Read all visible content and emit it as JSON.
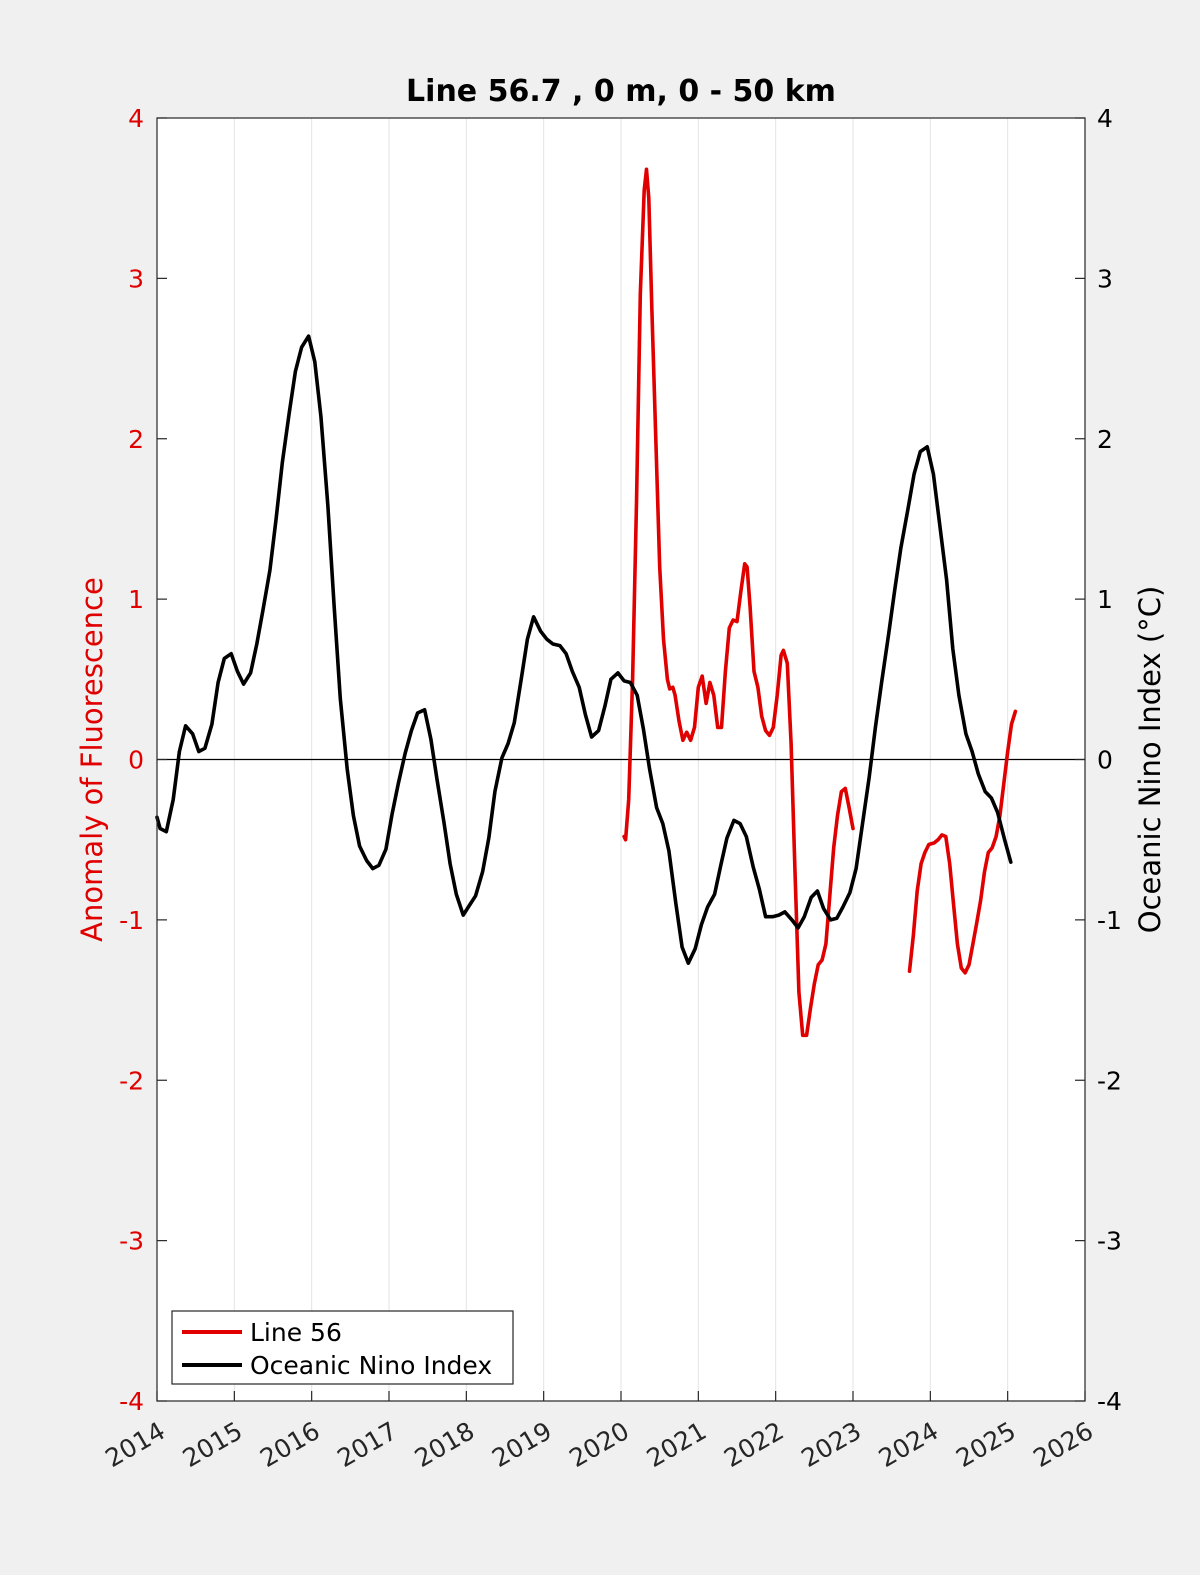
{
  "chart_data": {
    "type": "line",
    "title": "Line 56.7 , 0 m, 0 - 50 km",
    "ylabel_left": "Anomaly of Fluorescence",
    "ylabel_right": "Oceanic Nino Index (°C)",
    "xlim": [
      2014,
      2026
    ],
    "ylim_left": [
      -4,
      4
    ],
    "ylim_right": [
      -4,
      4
    ],
    "x_ticks": [
      "2014",
      "2015",
      "2016",
      "2017",
      "2018",
      "2019",
      "2020",
      "2021",
      "2022",
      "2023",
      "2024",
      "2025",
      "2026"
    ],
    "y_ticks_left": [
      "4",
      "3",
      "2",
      "1",
      "0",
      "-1",
      "-2",
      "-3",
      "-4"
    ],
    "y_ticks_right": [
      "4",
      "3",
      "2",
      "1",
      "0",
      "-1",
      "-2",
      "-3",
      "-4"
    ],
    "grid": "vertical",
    "zero_line": true,
    "legend": {
      "placement": "bottom-left",
      "entries": [
        {
          "label": "Line 56",
          "color": "#e00000"
        },
        {
          "label": "Oceanic Nino Index",
          "color": "#000000"
        }
      ]
    },
    "series": [
      {
        "name": "Line 56",
        "axis": "left",
        "color": "#e00000",
        "segments": [
          [
            [
              2020.04,
              -0.48
            ],
            [
              2020.06,
              -0.5
            ],
            [
              2020.1,
              -0.25
            ],
            [
              2020.15,
              0.5
            ],
            [
              2020.2,
              1.6
            ],
            [
              2020.25,
              2.9
            ],
            [
              2020.3,
              3.55
            ],
            [
              2020.33,
              3.68
            ],
            [
              2020.36,
              3.5
            ],
            [
              2020.4,
              2.8
            ],
            [
              2020.45,
              2.0
            ],
            [
              2020.5,
              1.2
            ],
            [
              2020.55,
              0.75
            ],
            [
              2020.6,
              0.5
            ],
            [
              2020.63,
              0.44
            ],
            [
              2020.67,
              0.45
            ],
            [
              2020.7,
              0.4
            ],
            [
              2020.75,
              0.24
            ],
            [
              2020.8,
              0.12
            ],
            [
              2020.85,
              0.17
            ],
            [
              2020.9,
              0.12
            ],
            [
              2020.95,
              0.2
            ],
            [
              2021.0,
              0.45
            ],
            [
              2021.05,
              0.52
            ],
            [
              2021.1,
              0.35
            ],
            [
              2021.15,
              0.48
            ],
            [
              2021.2,
              0.4
            ],
            [
              2021.25,
              0.2
            ],
            [
              2021.3,
              0.2
            ],
            [
              2021.35,
              0.55
            ],
            [
              2021.4,
              0.82
            ],
            [
              2021.45,
              0.87
            ],
            [
              2021.5,
              0.86
            ],
            [
              2021.55,
              1.05
            ],
            [
              2021.6,
              1.22
            ],
            [
              2021.63,
              1.2
            ],
            [
              2021.67,
              0.95
            ],
            [
              2021.72,
              0.55
            ],
            [
              2021.77,
              0.45
            ],
            [
              2021.82,
              0.27
            ],
            [
              2021.87,
              0.18
            ],
            [
              2021.92,
              0.15
            ],
            [
              2021.97,
              0.2
            ],
            [
              2022.02,
              0.4
            ],
            [
              2022.07,
              0.65
            ],
            [
              2022.1,
              0.68
            ],
            [
              2022.15,
              0.6
            ],
            [
              2022.2,
              0.1
            ],
            [
              2022.25,
              -0.7
            ],
            [
              2022.3,
              -1.45
            ],
            [
              2022.35,
              -1.72
            ],
            [
              2022.4,
              -1.72
            ],
            [
              2022.45,
              -1.55
            ],
            [
              2022.5,
              -1.4
            ],
            [
              2022.55,
              -1.28
            ],
            [
              2022.6,
              -1.25
            ],
            [
              2022.65,
              -1.15
            ],
            [
              2022.7,
              -0.85
            ],
            [
              2022.75,
              -0.55
            ],
            [
              2022.8,
              -0.35
            ],
            [
              2022.85,
              -0.2
            ],
            [
              2022.9,
              -0.18
            ],
            [
              2022.95,
              -0.3
            ],
            [
              2023.0,
              -0.43
            ]
          ],
          [
            [
              2023.73,
              -1.32
            ],
            [
              2023.78,
              -1.1
            ],
            [
              2023.83,
              -0.82
            ],
            [
              2023.88,
              -0.65
            ],
            [
              2023.93,
              -0.58
            ],
            [
              2023.98,
              -0.53
            ],
            [
              2024.05,
              -0.52
            ],
            [
              2024.1,
              -0.5
            ],
            [
              2024.15,
              -0.47
            ],
            [
              2024.2,
              -0.48
            ],
            [
              2024.25,
              -0.65
            ],
            [
              2024.3,
              -0.9
            ],
            [
              2024.35,
              -1.15
            ],
            [
              2024.4,
              -1.3
            ],
            [
              2024.45,
              -1.33
            ],
            [
              2024.5,
              -1.28
            ],
            [
              2024.55,
              -1.15
            ],
            [
              2024.6,
              -1.02
            ],
            [
              2024.65,
              -0.88
            ],
            [
              2024.7,
              -0.7
            ],
            [
              2024.75,
              -0.58
            ],
            [
              2024.8,
              -0.55
            ],
            [
              2024.85,
              -0.48
            ],
            [
              2024.9,
              -0.35
            ],
            [
              2024.95,
              -0.15
            ],
            [
              2025.0,
              0.05
            ],
            [
              2025.05,
              0.22
            ],
            [
              2025.1,
              0.3
            ]
          ]
        ]
      },
      {
        "name": "Oceanic Nino Index",
        "axis": "right",
        "color": "#000000",
        "segments": [
          [
            [
              2014.0,
              -0.36
            ],
            [
              2014.04,
              -0.43
            ],
            [
              2014.12,
              -0.45
            ],
            [
              2014.21,
              -0.25
            ],
            [
              2014.29,
              0.05
            ],
            [
              2014.37,
              0.21
            ],
            [
              2014.46,
              0.16
            ],
            [
              2014.54,
              0.05
            ],
            [
              2014.62,
              0.07
            ],
            [
              2014.71,
              0.22
            ],
            [
              2014.79,
              0.48
            ],
            [
              2014.87,
              0.63
            ],
            [
              2014.96,
              0.66
            ],
            [
              2015.04,
              0.55
            ],
            [
              2015.12,
              0.47
            ],
            [
              2015.21,
              0.54
            ],
            [
              2015.29,
              0.72
            ],
            [
              2015.37,
              0.93
            ],
            [
              2015.46,
              1.18
            ],
            [
              2015.54,
              1.5
            ],
            [
              2015.62,
              1.85
            ],
            [
              2015.71,
              2.16
            ],
            [
              2015.79,
              2.42
            ],
            [
              2015.87,
              2.57
            ],
            [
              2015.96,
              2.64
            ],
            [
              2016.04,
              2.48
            ],
            [
              2016.12,
              2.14
            ],
            [
              2016.21,
              1.58
            ],
            [
              2016.29,
              0.96
            ],
            [
              2016.37,
              0.38
            ],
            [
              2016.46,
              -0.06
            ],
            [
              2016.54,
              -0.35
            ],
            [
              2016.62,
              -0.54
            ],
            [
              2016.71,
              -0.63
            ],
            [
              2016.79,
              -0.68
            ],
            [
              2016.87,
              -0.66
            ],
            [
              2016.96,
              -0.56
            ],
            [
              2017.04,
              -0.34
            ],
            [
              2017.12,
              -0.15
            ],
            [
              2017.21,
              0.04
            ],
            [
              2017.29,
              0.18
            ],
            [
              2017.37,
              0.29
            ],
            [
              2017.46,
              0.31
            ],
            [
              2017.54,
              0.13
            ],
            [
              2017.62,
              -0.12
            ],
            [
              2017.71,
              -0.39
            ],
            [
              2017.79,
              -0.65
            ],
            [
              2017.87,
              -0.84
            ],
            [
              2017.96,
              -0.97
            ],
            [
              2018.04,
              -0.91
            ],
            [
              2018.12,
              -0.85
            ],
            [
              2018.21,
              -0.7
            ],
            [
              2018.29,
              -0.49
            ],
            [
              2018.37,
              -0.2
            ],
            [
              2018.46,
              0.01
            ],
            [
              2018.54,
              0.1
            ],
            [
              2018.62,
              0.23
            ],
            [
              2018.71,
              0.5
            ],
            [
              2018.79,
              0.75
            ],
            [
              2018.87,
              0.89
            ],
            [
              2018.96,
              0.8
            ],
            [
              2019.04,
              0.75
            ],
            [
              2019.12,
              0.72
            ],
            [
              2019.21,
              0.71
            ],
            [
              2019.29,
              0.66
            ],
            [
              2019.37,
              0.55
            ],
            [
              2019.46,
              0.45
            ],
            [
              2019.54,
              0.28
            ],
            [
              2019.62,
              0.14
            ],
            [
              2019.71,
              0.18
            ],
            [
              2019.79,
              0.33
            ],
            [
              2019.87,
              0.5
            ],
            [
              2019.96,
              0.54
            ],
            [
              2020.04,
              0.49
            ],
            [
              2020.12,
              0.48
            ],
            [
              2020.21,
              0.4
            ],
            [
              2020.29,
              0.19
            ],
            [
              2020.37,
              -0.06
            ],
            [
              2020.46,
              -0.3
            ],
            [
              2020.54,
              -0.4
            ],
            [
              2020.62,
              -0.57
            ],
            [
              2020.71,
              -0.9
            ],
            [
              2020.79,
              -1.17
            ],
            [
              2020.87,
              -1.27
            ],
            [
              2020.96,
              -1.18
            ],
            [
              2021.04,
              -1.03
            ],
            [
              2021.12,
              -0.92
            ],
            [
              2021.21,
              -0.84
            ],
            [
              2021.29,
              -0.66
            ],
            [
              2021.37,
              -0.49
            ],
            [
              2021.46,
              -0.38
            ],
            [
              2021.54,
              -0.4
            ],
            [
              2021.62,
              -0.48
            ],
            [
              2021.71,
              -0.67
            ],
            [
              2021.79,
              -0.81
            ],
            [
              2021.87,
              -0.98
            ],
            [
              2021.96,
              -0.98
            ],
            [
              2022.04,
              -0.97
            ],
            [
              2022.12,
              -0.95
            ],
            [
              2022.21,
              -1.0
            ],
            [
              2022.29,
              -1.05
            ],
            [
              2022.37,
              -0.98
            ],
            [
              2022.46,
              -0.86
            ],
            [
              2022.54,
              -0.82
            ],
            [
              2022.62,
              -0.93
            ],
            [
              2022.71,
              -1.0
            ],
            [
              2022.79,
              -0.99
            ],
            [
              2022.87,
              -0.92
            ],
            [
              2022.96,
              -0.83
            ],
            [
              2023.04,
              -0.68
            ],
            [
              2023.12,
              -0.41
            ],
            [
              2023.21,
              -0.11
            ],
            [
              2023.29,
              0.2
            ],
            [
              2023.37,
              0.48
            ],
            [
              2023.46,
              0.78
            ],
            [
              2023.54,
              1.06
            ],
            [
              2023.62,
              1.32
            ],
            [
              2023.71,
              1.56
            ],
            [
              2023.79,
              1.78
            ],
            [
              2023.87,
              1.92
            ],
            [
              2023.96,
              1.95
            ],
            [
              2024.04,
              1.78
            ],
            [
              2024.12,
              1.47
            ],
            [
              2024.21,
              1.12
            ],
            [
              2024.29,
              0.69
            ],
            [
              2024.37,
              0.4
            ],
            [
              2024.46,
              0.16
            ],
            [
              2024.54,
              0.05
            ],
            [
              2024.62,
              -0.09
            ],
            [
              2024.71,
              -0.2
            ],
            [
              2024.79,
              -0.24
            ],
            [
              2024.87,
              -0.33
            ],
            [
              2024.96,
              -0.5
            ],
            [
              2025.04,
              -0.64
            ]
          ]
        ]
      }
    ]
  }
}
